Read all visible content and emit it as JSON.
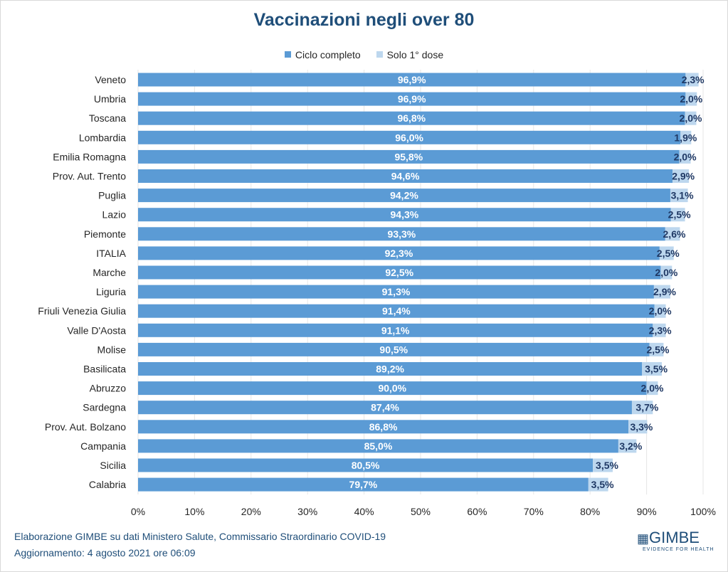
{
  "colors": {
    "ciclo_completo": "#5B9BD5",
    "solo_prima_dose": "#BDD7EE",
    "title": "#1F4E79",
    "second_label": "#1F3864"
  },
  "chart_data": {
    "type": "bar",
    "orientation": "horizontal",
    "stacked": true,
    "title": "Vaccinazioni negli over 80",
    "legend_position": "top",
    "grid": true,
    "xlim": [
      0,
      100
    ],
    "x_ticks": [
      "0%",
      "10%",
      "20%",
      "30%",
      "40%",
      "50%",
      "60%",
      "70%",
      "80%",
      "90%",
      "100%"
    ],
    "categories": [
      "Veneto",
      "Umbria",
      "Toscana",
      "Lombardia",
      "Emilia Romagna",
      "Prov. Aut. Trento",
      "Puglia",
      "Lazio",
      "Piemonte",
      "ITALIA",
      "Marche",
      "Liguria",
      "Friuli Venezia Giulia",
      "Valle D'Aosta",
      "Molise",
      "Basilicata",
      "Abruzzo",
      "Sardegna",
      "Prov. Aut. Bolzano",
      "Campania",
      "Sicilia",
      "Calabria"
    ],
    "series": [
      {
        "name": "Ciclo completo",
        "values": [
          96.9,
          96.9,
          96.8,
          96.0,
          95.8,
          94.6,
          94.2,
          94.3,
          93.3,
          92.3,
          92.5,
          91.3,
          91.4,
          91.1,
          90.5,
          89.2,
          90.0,
          87.4,
          86.8,
          85.0,
          80.5,
          79.7
        ],
        "labels": [
          "96,9%",
          "96,9%",
          "96,8%",
          "96,0%",
          "95,8%",
          "94,6%",
          "94,2%",
          "94,3%",
          "93,3%",
          "92,3%",
          "92,5%",
          "91,3%",
          "91,4%",
          "91,1%",
          "90,5%",
          "89,2%",
          "90,0%",
          "87,4%",
          "86,8%",
          "85,0%",
          "80,5%",
          "79,7%"
        ]
      },
      {
        "name": "Solo 1° dose",
        "values": [
          2.3,
          2.0,
          2.0,
          1.9,
          2.0,
          2.9,
          3.1,
          2.5,
          2.6,
          2.5,
          2.0,
          2.9,
          2.0,
          2.3,
          2.5,
          3.5,
          2.0,
          3.7,
          3.3,
          3.2,
          3.5,
          3.5
        ],
        "labels": [
          "2,3%",
          "2,0%",
          "2,0%",
          "1,9%",
          "2,0%",
          "2,9%",
          "3,1%",
          "2,5%",
          "2,6%",
          "2,5%",
          "2,0%",
          "2,9%",
          "2,0%",
          "2,3%",
          "2,5%",
          "3,5%",
          "2,0%",
          "3,7%",
          "3,3%",
          "3,2%",
          "3,5%",
          "3,5%"
        ]
      }
    ]
  },
  "footer": {
    "source": "Elaborazione GIMBE su dati Ministero Salute, Commissario Straordinario  COVID-19",
    "updated": "Aggiornamento:  4 agosto 2021 ore 06:09"
  },
  "logo": {
    "name": "GIMBE",
    "tagline": "EVIDENCE FOR HEALTH"
  }
}
